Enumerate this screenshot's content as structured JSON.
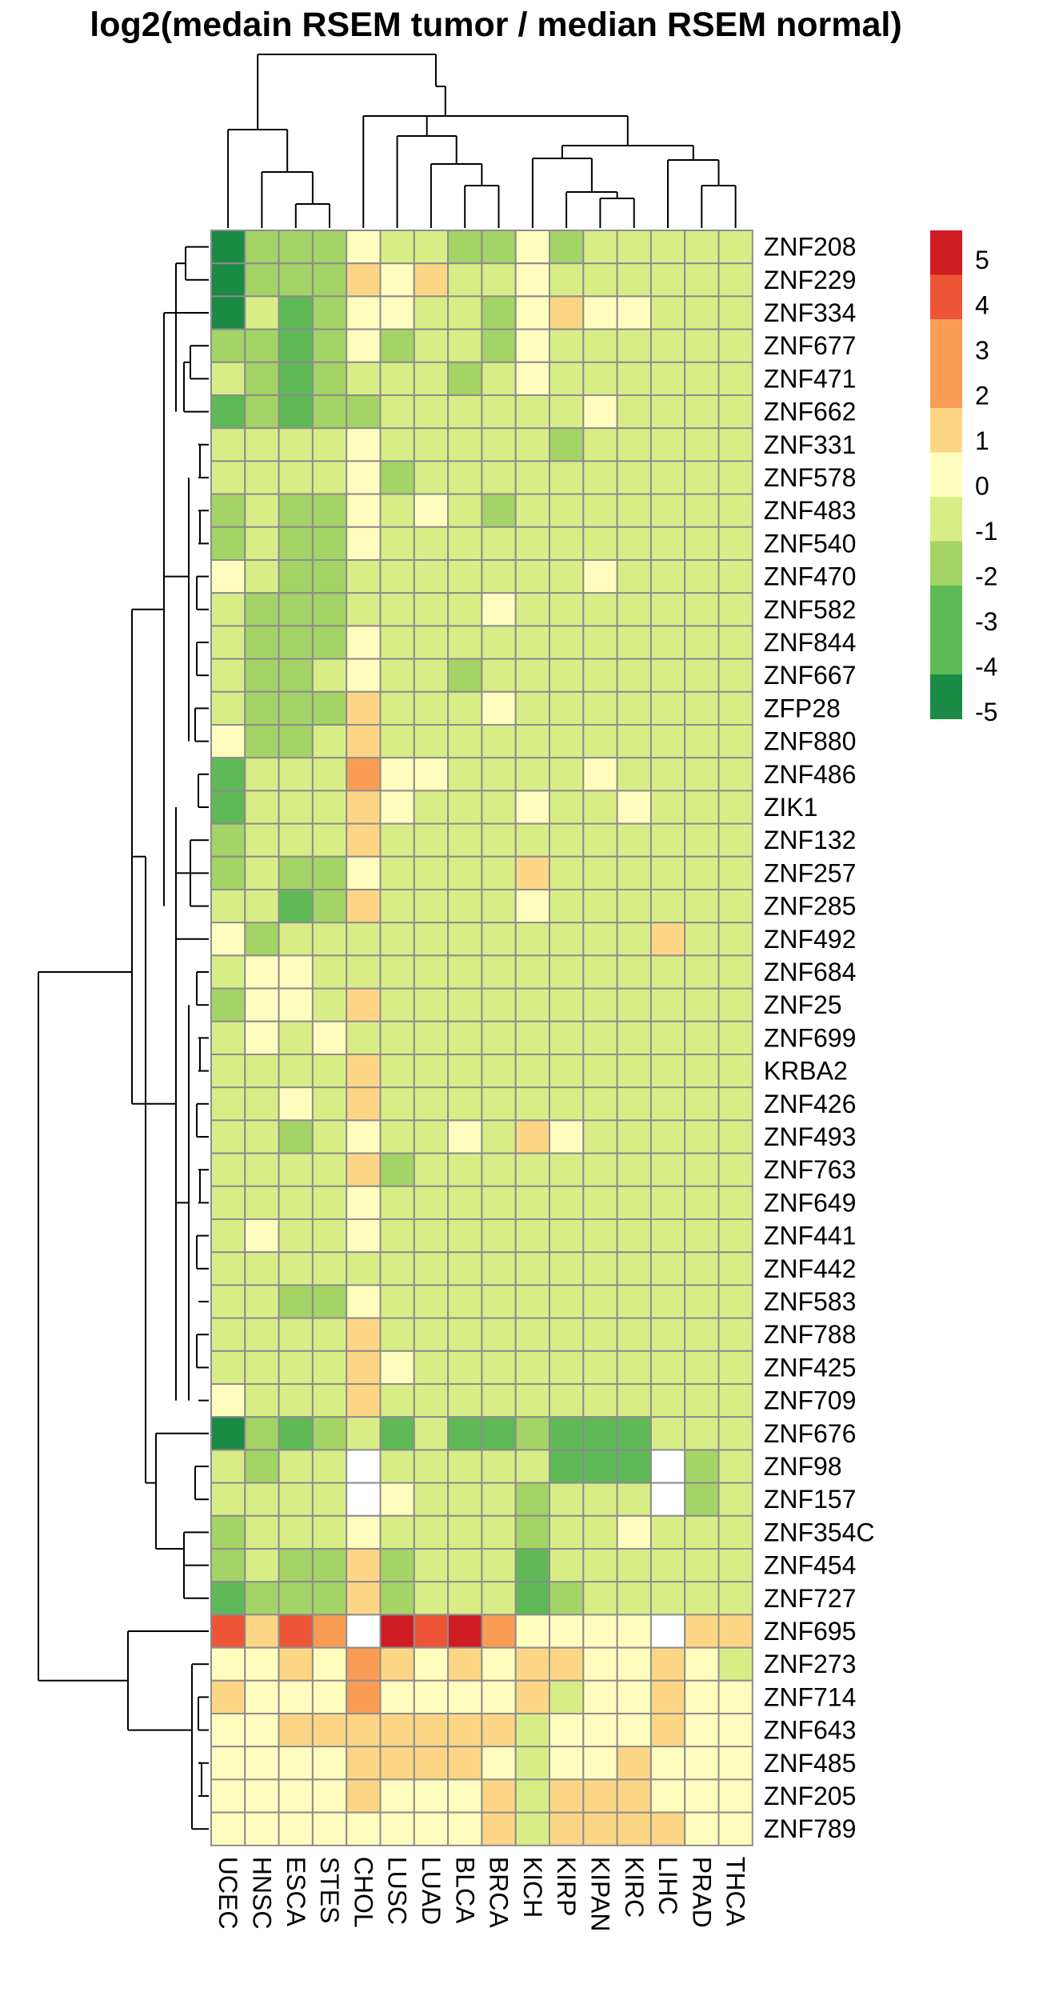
{
  "chart_data": {
    "type": "heatmap",
    "title": "log2(medain RSEM tumor / median RSEM normal)",
    "rows": [
      "ZNF208",
      "ZNF229",
      "ZNF334",
      "ZNF677",
      "ZNF471",
      "ZNF662",
      "ZNF331",
      "ZNF578",
      "ZNF483",
      "ZNF540",
      "ZNF470",
      "ZNF582",
      "ZNF844",
      "ZNF667",
      "ZFP28",
      "ZNF880",
      "ZNF486",
      "ZIK1",
      "ZNF132",
      "ZNF257",
      "ZNF285",
      "ZNF492",
      "ZNF684",
      "ZNF25",
      "ZNF699",
      "KRBA2",
      "ZNF426",
      "ZNF493",
      "ZNF763",
      "ZNF649",
      "ZNF441",
      "ZNF442",
      "ZNF583",
      "ZNF788",
      "ZNF425",
      "ZNF709",
      "ZNF676",
      "ZNF98",
      "ZNF157",
      "ZNF354C",
      "ZNF454",
      "ZNF727",
      "ZNF695",
      "ZNF273",
      "ZNF714",
      "ZNF643",
      "ZNF485",
      "ZNF205",
      "ZNF789"
    ],
    "columns": [
      "UCEC",
      "HNSC",
      "ESCA",
      "STES",
      "CHOL",
      "LUSC",
      "LUAD",
      "BLCA",
      "BRCA",
      "KICH",
      "KIRP",
      "KIPAN",
      "KIRC",
      "LIHC",
      "PRAD",
      "THCA"
    ],
    "values": [
      [
        -5,
        -2,
        -2,
        -2,
        0,
        -1,
        -1,
        -2,
        -2,
        0,
        -2,
        -1,
        -1,
        -1,
        -1,
        -1
      ],
      [
        -5,
        -2,
        -2,
        -2,
        1,
        0,
        1,
        -1,
        -1,
        0,
        -1,
        -1,
        -1,
        -1,
        -1,
        -1
      ],
      [
        -5,
        -1,
        -3,
        -2,
        0,
        0,
        -1,
        -1,
        -2,
        0,
        1,
        0,
        0,
        -1,
        -1,
        -1
      ],
      [
        -2,
        -2,
        -3,
        -2,
        0,
        -2,
        -1,
        -1,
        -2,
        0,
        -1,
        -1,
        -1,
        -1,
        -1,
        -1
      ],
      [
        -1,
        -2,
        -3,
        -2,
        -1,
        -1,
        -1,
        -2,
        -1,
        0,
        -1,
        -1,
        -1,
        -1,
        -1,
        -1
      ],
      [
        -3,
        -2,
        -3,
        -2,
        -2,
        -1,
        -1,
        -1,
        -1,
        -1,
        -1,
        0,
        -1,
        -1,
        -1,
        -1
      ],
      [
        -1,
        -1,
        -1,
        -1,
        0,
        -1,
        -1,
        -1,
        -1,
        -1,
        -2,
        -1,
        -1,
        -1,
        -1,
        -1
      ],
      [
        -1,
        -1,
        -1,
        -1,
        0,
        -2,
        -1,
        -1,
        -1,
        -1,
        -1,
        -1,
        -1,
        -1,
        -1,
        -1
      ],
      [
        -2,
        -1,
        -2,
        -2,
        0,
        -1,
        0,
        -1,
        -2,
        -1,
        -1,
        -1,
        -1,
        -1,
        -1,
        -1
      ],
      [
        -2,
        -1,
        -2,
        -2,
        0,
        -1,
        -1,
        -1,
        -1,
        -1,
        -1,
        -1,
        -1,
        -1,
        -1,
        -1
      ],
      [
        0,
        -1,
        -2,
        -2,
        -1,
        -1,
        -1,
        -1,
        -1,
        -1,
        -1,
        0,
        -1,
        -1,
        -1,
        -1
      ],
      [
        -1,
        -2,
        -2,
        -2,
        -1,
        -1,
        -1,
        -1,
        0,
        -1,
        -1,
        -1,
        -1,
        -1,
        -1,
        -1
      ],
      [
        -1,
        -2,
        -2,
        -2,
        0,
        -1,
        -1,
        -1,
        -1,
        -1,
        -1,
        -1,
        -1,
        -1,
        -1,
        -1
      ],
      [
        -1,
        -2,
        -2,
        -1,
        0,
        -1,
        -1,
        -2,
        -1,
        -1,
        -1,
        -1,
        -1,
        -1,
        -1,
        -1
      ],
      [
        -1,
        -2,
        -2,
        -2,
        1,
        -1,
        -1,
        -1,
        0,
        -1,
        -1,
        -1,
        -1,
        -1,
        -1,
        -1
      ],
      [
        0,
        -2,
        -2,
        -1,
        1,
        -1,
        -1,
        -1,
        -1,
        -1,
        -1,
        -1,
        -1,
        -1,
        -1,
        -1
      ],
      [
        -3,
        -1,
        -1,
        -1,
        2,
        0,
        0,
        -1,
        -1,
        -1,
        -1,
        0,
        -1,
        -1,
        -1,
        -1
      ],
      [
        -3,
        -1,
        -1,
        -1,
        1,
        0,
        -1,
        -1,
        -1,
        0,
        -1,
        -1,
        0,
        -1,
        -1,
        -1
      ],
      [
        -2,
        -1,
        -1,
        -1,
        1,
        -1,
        -1,
        -1,
        -1,
        -1,
        -1,
        -1,
        -1,
        -1,
        -1,
        -1
      ],
      [
        -2,
        -1,
        -2,
        -2,
        0,
        -1,
        -1,
        -1,
        -1,
        1,
        -1,
        -1,
        -1,
        -1,
        -1,
        -1
      ],
      [
        -1,
        -1,
        -3,
        -2,
        1,
        -1,
        -1,
        -1,
        -1,
        0,
        -1,
        -1,
        -1,
        -1,
        -1,
        -1
      ],
      [
        0,
        -2,
        -1,
        -1,
        -1,
        -1,
        -1,
        -1,
        -1,
        -1,
        -1,
        -1,
        -1,
        1,
        -1,
        -1
      ],
      [
        -1,
        0,
        0,
        -1,
        -1,
        -1,
        -1,
        -1,
        -1,
        -1,
        -1,
        -1,
        -1,
        -1,
        -1,
        -1
      ],
      [
        -2,
        0,
        0,
        -1,
        1,
        -1,
        -1,
        -1,
        -1,
        -1,
        -1,
        -1,
        -1,
        -1,
        -1,
        -1
      ],
      [
        -1,
        0,
        -1,
        0,
        -1,
        -1,
        -1,
        -1,
        -1,
        -1,
        -1,
        -1,
        -1,
        -1,
        -1,
        -1
      ],
      [
        -1,
        -1,
        -1,
        -1,
        1,
        -1,
        -1,
        -1,
        -1,
        -1,
        -1,
        -1,
        -1,
        -1,
        -1,
        -1
      ],
      [
        -1,
        -1,
        0,
        -1,
        1,
        -1,
        -1,
        -1,
        -1,
        -1,
        -1,
        -1,
        -1,
        -1,
        -1,
        -1
      ],
      [
        -1,
        -1,
        -2,
        -1,
        0,
        -1,
        -1,
        0,
        -1,
        1,
        0,
        -1,
        -1,
        -1,
        -1,
        -1
      ],
      [
        -1,
        -1,
        -1,
        -1,
        1,
        -2,
        -1,
        -1,
        -1,
        -1,
        -1,
        -1,
        -1,
        -1,
        -1,
        -1
      ],
      [
        -1,
        -1,
        -1,
        -1,
        0,
        -1,
        -1,
        -1,
        -1,
        -1,
        -1,
        -1,
        -1,
        -1,
        -1,
        -1
      ],
      [
        -1,
        0,
        -1,
        -1,
        0,
        -1,
        -1,
        -1,
        -1,
        -1,
        -1,
        -1,
        -1,
        -1,
        -1,
        -1
      ],
      [
        -1,
        -1,
        -1,
        -1,
        -1,
        -1,
        -1,
        -1,
        -1,
        -1,
        -1,
        -1,
        -1,
        -1,
        -1,
        -1
      ],
      [
        -1,
        -1,
        -2,
        -2,
        0,
        -1,
        -1,
        -1,
        -1,
        -1,
        -1,
        -1,
        -1,
        -1,
        -1,
        -1
      ],
      [
        -1,
        -1,
        -1,
        -1,
        1,
        -1,
        -1,
        -1,
        -1,
        -1,
        -1,
        -1,
        -1,
        -1,
        -1,
        -1
      ],
      [
        -1,
        -1,
        -1,
        -1,
        1,
        0,
        -1,
        -1,
        -1,
        -1,
        -1,
        -1,
        -1,
        -1,
        -1,
        -1
      ],
      [
        0,
        -1,
        -1,
        -1,
        1,
        -1,
        -1,
        -1,
        -1,
        -1,
        -1,
        -1,
        -1,
        -1,
        -1,
        -1
      ],
      [
        -5,
        -2,
        -3,
        -2,
        -1,
        -3,
        -1,
        -3,
        -3,
        -2,
        -3,
        -3,
        -3,
        -1,
        -1,
        -1
      ],
      [
        -1,
        -2,
        -1,
        -1,
        null,
        -1,
        -1,
        -1,
        -1,
        -1,
        -3,
        -3,
        -3,
        null,
        -2,
        -1
      ],
      [
        -1,
        -1,
        -1,
        -1,
        null,
        0,
        -1,
        -1,
        -1,
        -2,
        -1,
        -1,
        -1,
        null,
        -2,
        -1
      ],
      [
        -2,
        -1,
        -1,
        -1,
        0,
        -1,
        -1,
        -1,
        -1,
        -2,
        -1,
        -1,
        0,
        -1,
        -1,
        -1
      ],
      [
        -2,
        -1,
        -2,
        -2,
        1,
        -2,
        -1,
        -1,
        -1,
        -3,
        -1,
        -1,
        -1,
        -1,
        -1,
        -1
      ],
      [
        -3,
        -2,
        -2,
        -2,
        1,
        -2,
        -1,
        -1,
        -1,
        -3,
        -2,
        -1,
        -1,
        -1,
        -1,
        -1
      ],
      [
        4,
        1,
        4,
        2,
        null,
        5,
        4,
        5,
        2,
        0,
        0,
        0,
        0,
        null,
        1,
        1
      ],
      [
        0,
        0,
        1,
        0,
        2,
        1,
        0,
        1,
        0,
        1,
        1,
        0,
        0,
        1,
        0,
        -1
      ],
      [
        1,
        0,
        0,
        0,
        2,
        0,
        0,
        0,
        0,
        1,
        -1,
        0,
        0,
        1,
        0,
        0
      ],
      [
        0,
        0,
        1,
        1,
        1,
        1,
        1,
        1,
        1,
        -1,
        0,
        0,
        0,
        1,
        0,
        0
      ],
      [
        0,
        0,
        0,
        0,
        1,
        1,
        1,
        1,
        0,
        -1,
        0,
        0,
        1,
        0,
        0,
        0
      ],
      [
        0,
        0,
        0,
        0,
        1,
        0,
        0,
        0,
        1,
        -1,
        1,
        1,
        1,
        0,
        0,
        0
      ],
      [
        0,
        0,
        0,
        0,
        0,
        0,
        0,
        0,
        1,
        -1,
        1,
        1,
        1,
        1,
        0,
        0
      ]
    ],
    "legend": {
      "ticks": [
        "5",
        "4",
        "3",
        "2",
        "1",
        "0",
        "-1",
        "-2",
        "-3",
        "-4",
        "-5"
      ],
      "levels": [
        5,
        4,
        3,
        2,
        1,
        0,
        -1,
        -2,
        -3,
        -4,
        -5
      ],
      "colors": {
        "5": "#cf1c23",
        "4": "#ee5536",
        "3": "#f99d55",
        "2": "#f99d55",
        "1": "#fdd685",
        "0": "#fefdbd",
        "-1": "#d9ed87",
        "-2": "#a4d366",
        "-3": "#5fb957",
        "-4": "#5fb957",
        "-5": "#1b8a45"
      },
      "na_color": "#ffffff"
    },
    "grid_color": "#8c8c8c"
  }
}
